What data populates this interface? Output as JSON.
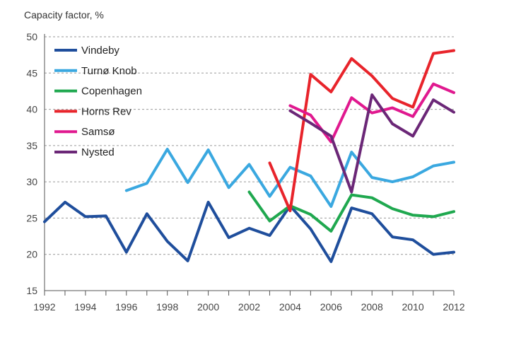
{
  "chart_data": {
    "type": "line",
    "title": "",
    "ylabel": "Capacity factor, %",
    "xlabel": "",
    "xlim": [
      1992,
      2012
    ],
    "ylim": [
      15,
      50
    ],
    "xticks": [
      1992,
      1994,
      1996,
      1998,
      2000,
      2002,
      2004,
      2006,
      2008,
      2010,
      2012
    ],
    "yticks": [
      15,
      20,
      25,
      30,
      35,
      40,
      45,
      50
    ],
    "grid": "horizontal-dashed",
    "legend_position": "top-left",
    "series": [
      {
        "name": "Vindeby",
        "color": "#1f4e9c",
        "x": [
          1992,
          1993,
          1994,
          1995,
          1996,
          1997,
          1998,
          1999,
          2000,
          2001,
          2002,
          2003,
          2004,
          2005,
          2006,
          2007,
          2008,
          2009,
          2010,
          2011,
          2012
        ],
        "values": [
          24.5,
          27.2,
          25.2,
          25.3,
          20.3,
          25.6,
          21.8,
          19.1,
          27.2,
          22.3,
          23.6,
          22.6,
          26.7,
          23.5,
          19.0,
          26.4,
          25.6,
          22.4,
          22.0,
          20.0,
          20.3
        ]
      },
      {
        "name": "Turnø Knob",
        "color": "#3aa8e0",
        "x": [
          1996,
          1997,
          1998,
          1999,
          2000,
          2001,
          2002,
          2003,
          2004,
          2005,
          2006,
          2007,
          2008,
          2009,
          2010,
          2011,
          2012
        ],
        "values": [
          28.8,
          29.8,
          34.5,
          29.9,
          34.4,
          29.2,
          32.4,
          28.0,
          32.0,
          30.8,
          26.6,
          34.1,
          30.6,
          30.0,
          30.7,
          32.2,
          32.7
        ]
      },
      {
        "name": "Copenhagen",
        "color": "#1fa84f",
        "x": [
          2002,
          2003,
          2004,
          2005,
          2006,
          2007,
          2008,
          2009,
          2010,
          2011,
          2012
        ],
        "values": [
          28.6,
          24.6,
          26.7,
          25.5,
          23.2,
          28.2,
          27.8,
          26.3,
          25.4,
          25.2,
          25.9
        ]
      },
      {
        "name": "Horns Rev",
        "color": "#e8242b",
        "x": [
          2003,
          2004,
          2005,
          2006,
          2007,
          2008,
          2009,
          2010,
          2011,
          2012
        ],
        "values": [
          32.6,
          26.0,
          44.8,
          42.4,
          47.0,
          44.6,
          41.5,
          40.3,
          47.7,
          48.1
        ]
      },
      {
        "name": "Samsø",
        "color": "#e0198f",
        "x": [
          2004,
          2005,
          2006,
          2007,
          2008,
          2009,
          2010,
          2011,
          2012
        ],
        "values": [
          40.5,
          39.2,
          35.5,
          41.6,
          39.5,
          40.2,
          39.0,
          43.5,
          42.3
        ]
      },
      {
        "name": "Nysted",
        "color": "#6b2777",
        "x": [
          2004,
          2005,
          2006,
          2007,
          2008,
          2009,
          2010,
          2011,
          2012
        ],
        "values": [
          39.8,
          38.1,
          36.3,
          28.6,
          42.0,
          38.0,
          36.3,
          41.3,
          39.6
        ]
      }
    ]
  }
}
